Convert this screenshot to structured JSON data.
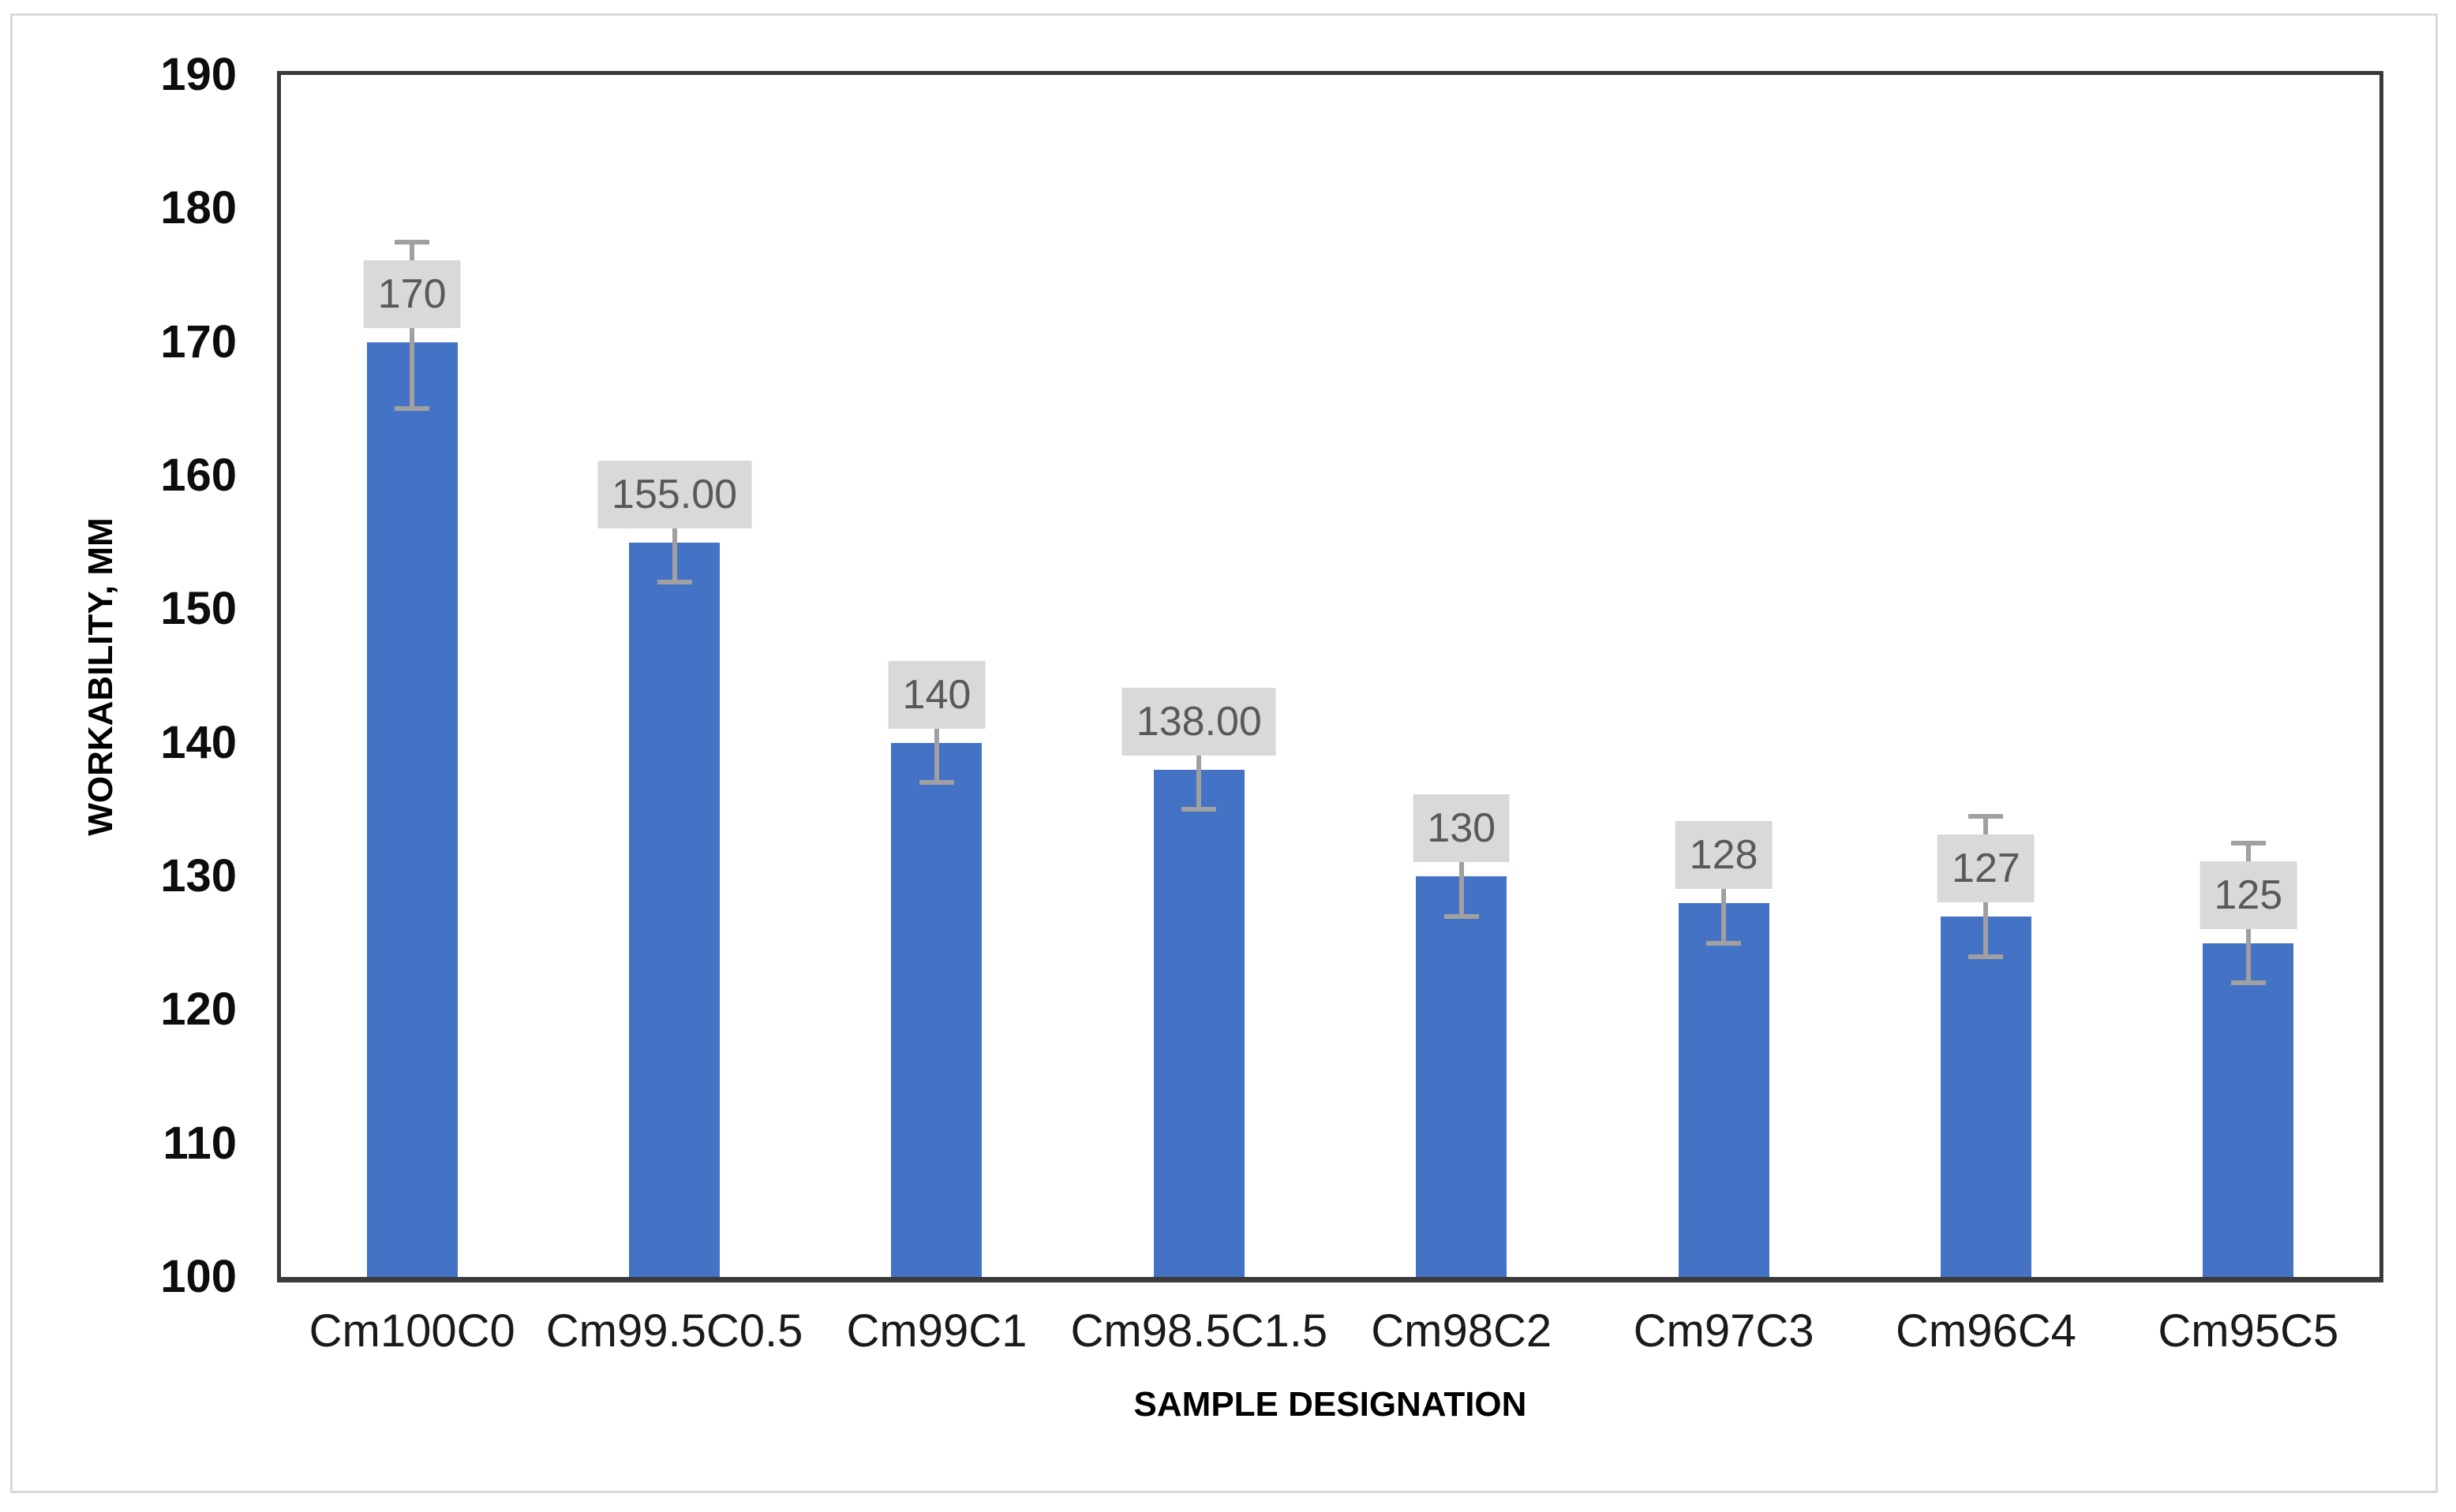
{
  "chart_data": {
    "type": "bar",
    "title": "",
    "categories": [
      "Cm100C0",
      "Cm99.5C0.5",
      "Cm99C1",
      "Cm98.5C1.5",
      "Cm98C2",
      "Cm97C3",
      "Cm96C4",
      "Cm95C5"
    ],
    "values": [
      170,
      155,
      140,
      138,
      130,
      128,
      127,
      125
    ],
    "data_labels": [
      "170",
      "155.00",
      "140",
      "138.00",
      "130",
      "128",
      "127",
      "125"
    ],
    "error_bars": {
      "up": [
        7.5,
        5,
        5,
        5,
        5,
        5,
        7.5,
        7.5
      ],
      "down": [
        5,
        3,
        3,
        3,
        3,
        3,
        3,
        3
      ]
    },
    "xlabel": "SAMPLE DESIGNATION",
    "ylabel": "WORKABILITY, MM",
    "ylim": [
      100,
      190
    ],
    "yticks": [
      190,
      180,
      170,
      160,
      150,
      140,
      130,
      120,
      110,
      100
    ],
    "grid": false,
    "legend_position": "none",
    "colors": {
      "bar": "#4472C4",
      "error_bar": "#a0a0a0",
      "data_label_bg": "#d9d9d9",
      "data_label_text": "#595959",
      "axis_line": "#3a3a3a",
      "tick_label": "#0d0d0d",
      "figure_border": "#d9d9d9"
    }
  }
}
